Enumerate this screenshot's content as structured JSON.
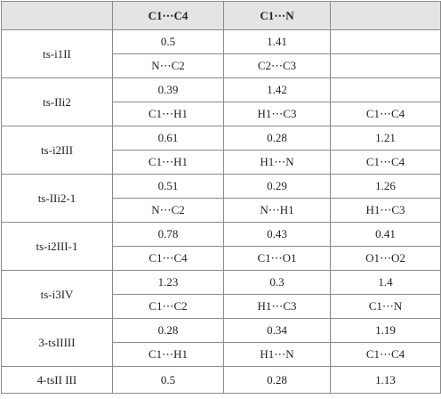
{
  "table": {
    "header": [
      "C1⋯C4",
      "C1⋯N"
    ],
    "groups": [
      {
        "label": "ts-i1II",
        "rows": [
          [
            0.5,
            1.41
          ],
          [
            "N⋯C2",
            "C2⋯C3"
          ]
        ]
      },
      {
        "label": "ts-IIi2",
        "rows": [
          [
            0.39,
            1.42
          ],
          [
            "C1⋯H1",
            "H1⋯C3",
            "C1⋯C4"
          ]
        ]
      },
      {
        "label": "ts-i2III",
        "rows": [
          [
            0.61,
            0.28,
            1.21
          ],
          [
            "C1⋯H1",
            "H1⋯N",
            "C1⋯C4"
          ]
        ]
      },
      {
        "label": "ts-IIi2-1",
        "rows": [
          [
            0.51,
            0.29,
            1.26
          ],
          [
            "N⋯C2",
            "N⋯H1",
            "H1⋯C3"
          ]
        ]
      },
      {
        "label": "ts-i2III-1",
        "rows": [
          [
            0.78,
            0.43,
            0.41
          ],
          [
            "C1⋯C4",
            "C1⋯O1",
            "O1⋯O2"
          ]
        ]
      },
      {
        "label": "ts-i3IV",
        "rows": [
          [
            1.23,
            0.3,
            1.4
          ],
          [
            "C1⋯C2",
            "H1⋯C3",
            "C1⋯N"
          ]
        ]
      },
      {
        "label": "3-tsIIIII",
        "rows": [
          [
            0.28,
            0.34,
            1.19
          ],
          [
            "C1⋯H1",
            "H1⋯N",
            "C1⋯C4"
          ]
        ]
      },
      {
        "label": "4-tsII III",
        "rows": [
          [
            0.5,
            0.28,
            1.13
          ]
        ]
      }
    ]
  }
}
